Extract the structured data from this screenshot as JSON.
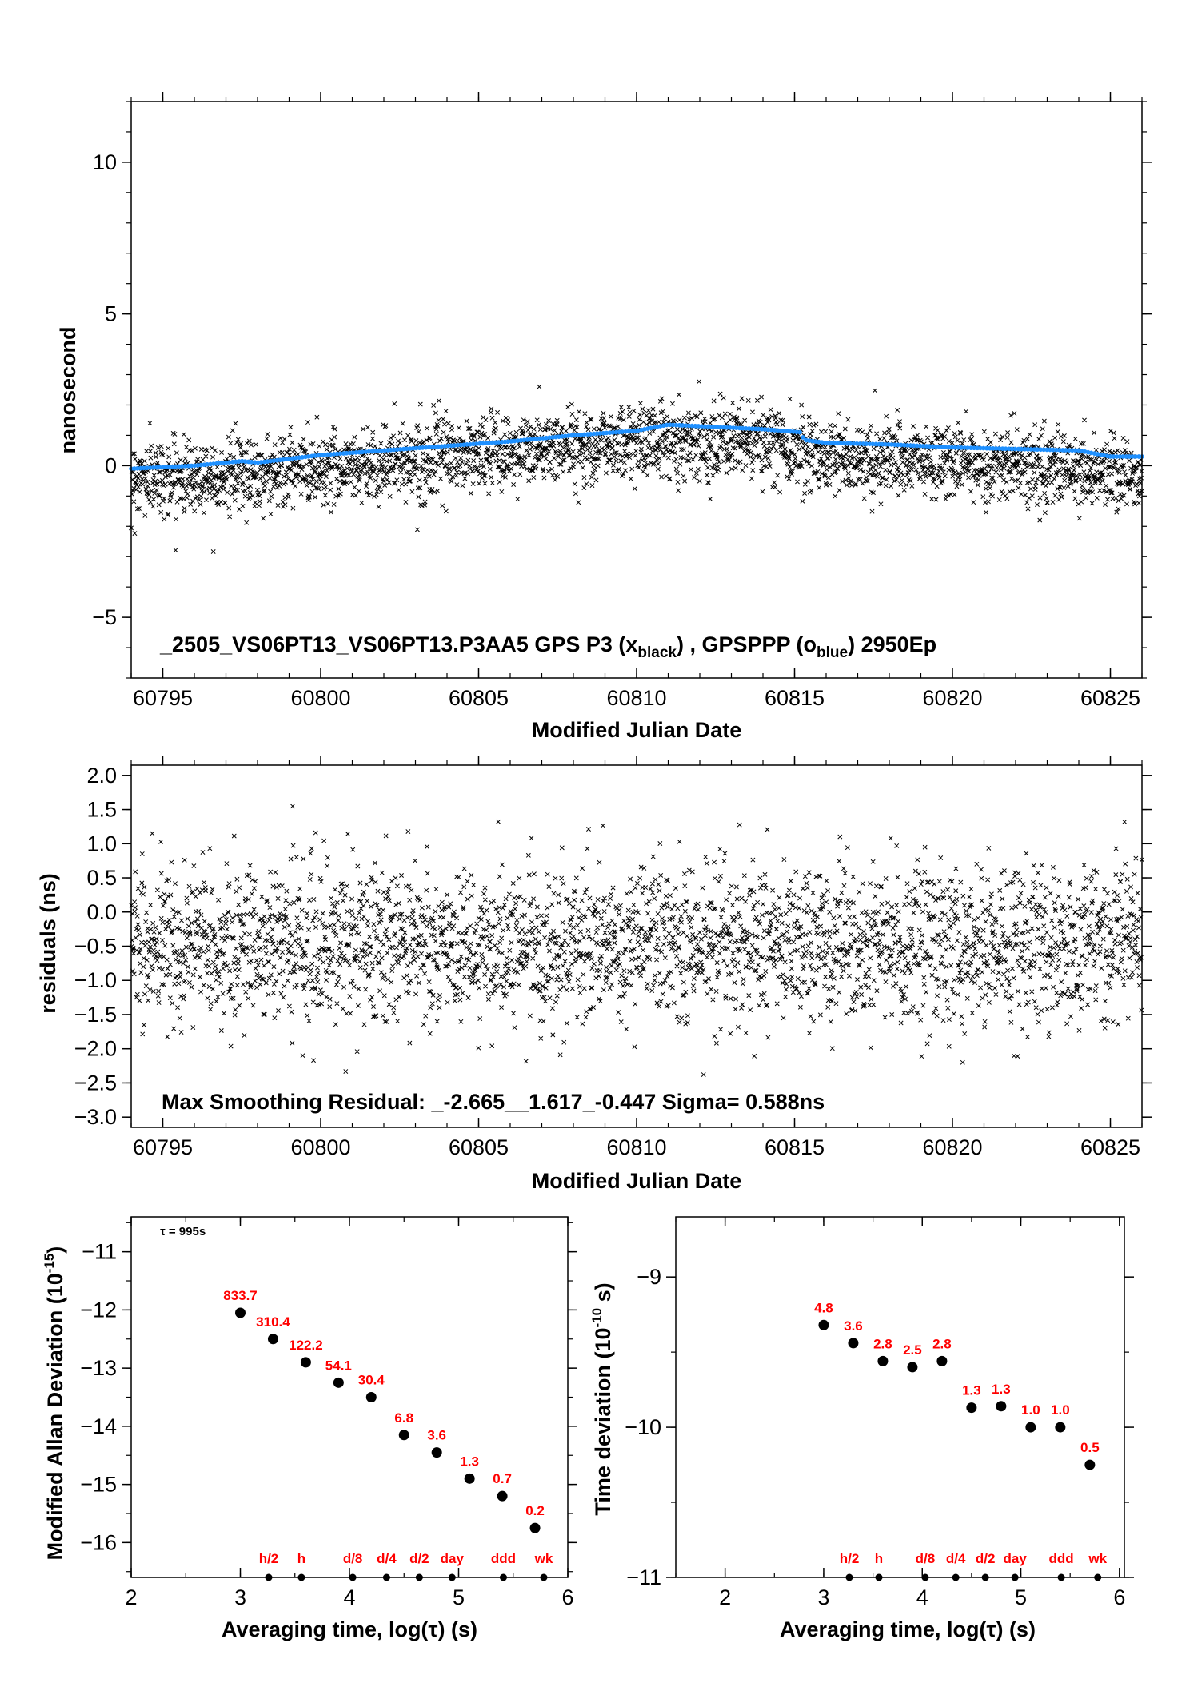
{
  "colors": {
    "black": "#000000",
    "blue": "#1e90ff",
    "red": "#ff0000"
  },
  "chart_data": [
    {
      "type": "scatter",
      "title": "_2505_VS06PT13_VS06PT13.P3AA5     GPS P3 (x",
      "title_parts": {
        "main": "_2505_VS06PT13_VS06PT13.P3AA5     GPS P3 (x",
        "sub1": "black",
        "mid": ") ,  GPSPPP (o",
        "sub2": "blue",
        "end": ")  2950Ep"
      },
      "xlabel": "Modified Julian Date",
      "ylabel": "nanosecond",
      "xlim": [
        60794,
        60826
      ],
      "ylim": [
        -7,
        12
      ],
      "xticks": [
        60795,
        60800,
        60805,
        60810,
        60815,
        60820,
        60825
      ],
      "yticks": [
        -5,
        0,
        5,
        10
      ],
      "yticklabels": [
        "−5",
        "0",
        "5",
        "10"
      ],
      "grid": false,
      "series": [
        {
          "marker": "x",
          "color": "#000000",
          "x_range": [
            60794,
            60826
          ],
          "point_count": 2950,
          "trend_x": [
            60794,
            60796,
            60798,
            60800,
            60802,
            60804,
            60806,
            60808,
            60810,
            60812,
            60814,
            60815.3,
            60816,
            60818,
            60820,
            60822,
            60824,
            60826
          ],
          "trend_y": [
            -0.4,
            -0.35,
            -0.25,
            -0.05,
            0.1,
            0.3,
            0.45,
            0.65,
            0.85,
            0.85,
            0.75,
            0.55,
            0.3,
            0.2,
            0.1,
            0.0,
            -0.15,
            -0.3
          ],
          "scatter_sigma": 0.6
        },
        {
          "marker": "o",
          "color": "#1e90ff",
          "x": [
            60794,
            60796,
            60797.5,
            60798,
            60800,
            60802,
            60804,
            60806,
            60808,
            60810,
            60811,
            60812,
            60814,
            60815.2,
            60815.3,
            60816,
            60818,
            60820,
            60822,
            60824,
            60825,
            60826
          ],
          "y": [
            -0.1,
            0.0,
            0.15,
            0.1,
            0.35,
            0.5,
            0.65,
            0.8,
            1.0,
            1.15,
            1.35,
            1.3,
            1.2,
            1.1,
            0.85,
            0.75,
            0.7,
            0.6,
            0.55,
            0.5,
            0.3,
            0.3
          ]
        }
      ]
    },
    {
      "type": "scatter",
      "xlabel": "Modified Julian Date",
      "ylabel": "residuals (ns)",
      "annotation": "Max Smoothing Residual: _-2.665__1.617_-0.447  Sigma= 0.588ns",
      "xlim": [
        60794,
        60826
      ],
      "ylim": [
        -3.15,
        2.15
      ],
      "xticks": [
        60795,
        60800,
        60805,
        60810,
        60815,
        60820,
        60825
      ],
      "yticks": [
        -3.0,
        -2.5,
        -2.0,
        -1.5,
        -1.0,
        -0.5,
        0.0,
        0.5,
        1.0,
        1.5,
        2.0
      ],
      "yticklabels": [
        "−3.0",
        "−2.5",
        "−2.0",
        "−1.5",
        "−1.0",
        "−0.5",
        "0.0",
        "0.5",
        "1.0",
        "1.5",
        "2.0"
      ],
      "grid": false,
      "series": [
        {
          "marker": "x",
          "color": "#000000",
          "point_count": 2950,
          "center": -0.45,
          "sigma": 0.588,
          "min": -2.665,
          "max": 1.617
        }
      ]
    },
    {
      "type": "scatter",
      "xlabel": "Averaging time, log(τ) (s)",
      "ylabel": "Modified Allan Deviation (10",
      "ylabel_sup": "-15",
      "ylabel_end": ")",
      "tau_note": "τ = 995s",
      "xlim": [
        2,
        6
      ],
      "ylim": [
        -16.6,
        -10.4
      ],
      "xticks": [
        2,
        3,
        4,
        5,
        6
      ],
      "yticks": [
        -16,
        -15,
        -14,
        -13,
        -12,
        -11
      ],
      "yticklabels": [
        "−16",
        "−15",
        "−14",
        "−13",
        "−12",
        "−11"
      ],
      "grid": false,
      "series": [
        {
          "marker": "o",
          "color": "#000000",
          "x": [
            3.0,
            3.3,
            3.6,
            3.9,
            4.2,
            4.5,
            4.8,
            5.1,
            5.4,
            5.7
          ],
          "y": [
            -12.05,
            -12.5,
            -12.9,
            -13.25,
            -13.5,
            -14.15,
            -14.45,
            -14.9,
            -15.2,
            -15.75
          ],
          "labels": [
            "833.7",
            "310.4",
            "122.2",
            "54.1",
            "30.4",
            "6.8",
            "3.6",
            "1.3",
            "0.7",
            "0.2"
          ]
        }
      ],
      "time_markers": {
        "x": [
          3.26,
          3.56,
          4.03,
          4.34,
          4.64,
          4.94,
          5.41,
          5.78
        ],
        "labels": [
          "h/2",
          "h",
          "d/8",
          "d/4",
          "d/2",
          "day",
          "ddd",
          "wk"
        ]
      }
    },
    {
      "type": "scatter",
      "xlabel": "Averaging time, log(τ) (s)",
      "ylabel": "Time deviation (10",
      "ylabel_sup": "-10",
      "ylabel_end": " s)",
      "xlim": [
        1.5,
        6.05
      ],
      "ylim": [
        -11.0,
        -8.6
      ],
      "xticks": [
        2,
        3,
        4,
        5,
        6
      ],
      "yticks": [
        -11,
        -10,
        -9
      ],
      "yticklabels": [
        "−11",
        "−10",
        "−9"
      ],
      "grid": false,
      "series": [
        {
          "marker": "o",
          "color": "#000000",
          "x": [
            3.0,
            3.3,
            3.6,
            3.9,
            4.2,
            4.5,
            4.8,
            5.1,
            5.4,
            5.7
          ],
          "y": [
            -9.32,
            -9.44,
            -9.56,
            -9.6,
            -9.56,
            -9.87,
            -9.86,
            -10.0,
            -10.0,
            -10.25
          ],
          "labels": [
            "4.8",
            "3.6",
            "2.8",
            "2.5",
            "2.8",
            "1.3",
            "1.3",
            "1.0",
            "1.0",
            "0.5"
          ]
        }
      ],
      "time_markers": {
        "x": [
          3.26,
          3.56,
          4.03,
          4.34,
          4.64,
          4.94,
          5.41,
          5.78
        ],
        "labels": [
          "h/2",
          "h",
          "d/8",
          "d/4",
          "d/2",
          "day",
          "ddd",
          "wk"
        ]
      }
    }
  ]
}
